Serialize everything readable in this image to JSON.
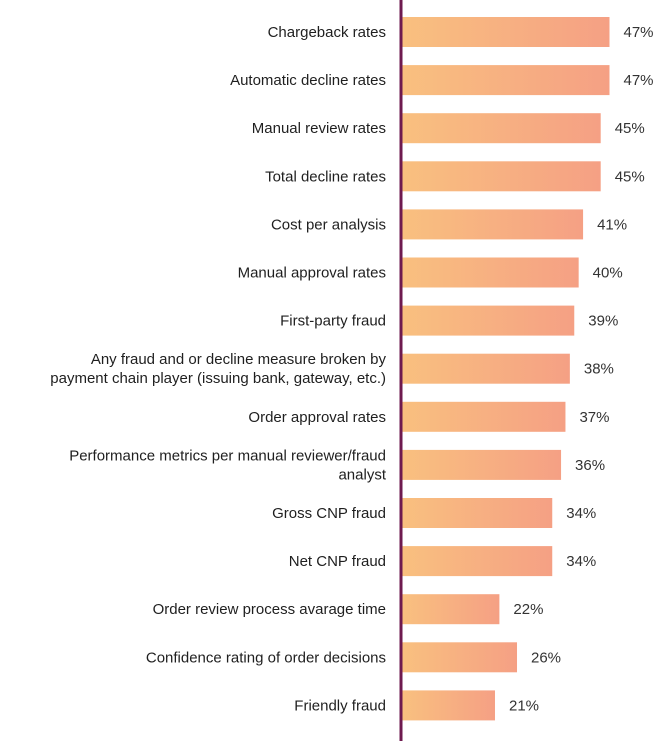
{
  "chart_data": {
    "type": "bar",
    "orientation": "horizontal",
    "title": "",
    "xlabel": "",
    "ylabel": "",
    "value_suffix": "%",
    "xlim": [
      0,
      60
    ],
    "grid": false,
    "categories": [
      [
        "Chargeback rates"
      ],
      [
        "Automatic decline rates"
      ],
      [
        "Manual review rates"
      ],
      [
        "Total decline rates"
      ],
      [
        "Cost per analysis"
      ],
      [
        "Manual approval rates"
      ],
      [
        "First-party fraud"
      ],
      [
        "Any fraud and or decline measure broken by",
        "payment chain player (issuing bank, gateway, etc.)"
      ],
      [
        "Order approval rates"
      ],
      [
        "Performance metrics per manual reviewer/fraud",
        "analyst"
      ],
      [
        "Gross CNP fraud"
      ],
      [
        "Net CNP fraud"
      ],
      [
        "Order review process avarage time"
      ],
      [
        "Confidence rating of order decisions"
      ],
      [
        "Friendly fraud"
      ]
    ],
    "values": [
      47,
      47,
      45,
      45,
      41,
      40,
      39,
      38,
      37,
      36,
      34,
      34,
      22,
      26,
      21
    ],
    "colors": {
      "bar_start": "#f9c07f",
      "bar_end": "#f5a084",
      "axis": "#6e1a4f",
      "text": "#1f1f1f"
    }
  }
}
